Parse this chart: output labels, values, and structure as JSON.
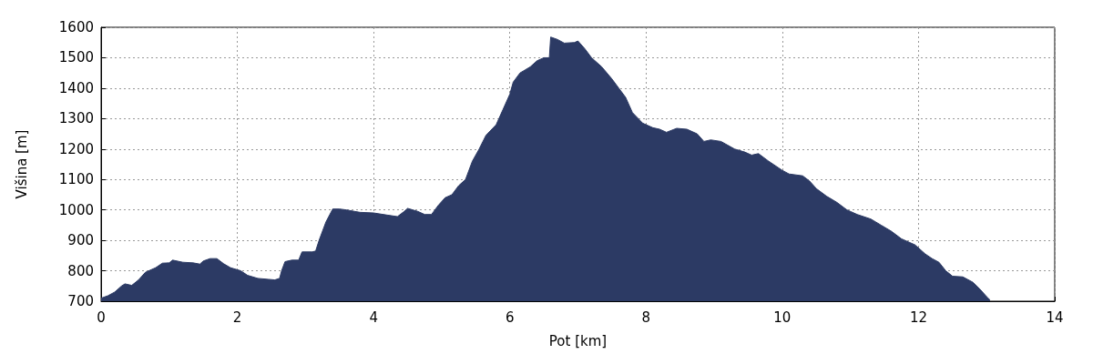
{
  "chart_data": {
    "type": "area",
    "xlabel": "Pot [km]",
    "ylabel": "Višina [m]",
    "xlim": [
      0,
      14
    ],
    "xticks": [
      0,
      2,
      4,
      6,
      8,
      10,
      12,
      14
    ],
    "ylim": [
      700,
      1600
    ],
    "yticks": [
      700,
      800,
      900,
      1000,
      1100,
      1200,
      1300,
      1400,
      1500,
      1600
    ],
    "grid": true,
    "series": [
      {
        "color": "#2c3a64",
        "x": [
          0,
          0.1,
          0.2,
          0.3,
          0.35,
          0.45,
          0.55,
          0.65,
          0.8,
          0.9,
          1.0,
          1.05,
          1.2,
          1.35,
          1.45,
          1.5,
          1.6,
          1.7,
          1.8,
          1.9,
          2.05,
          2.15,
          2.3,
          2.45,
          2.55,
          2.62,
          2.65,
          2.7,
          2.8,
          2.9,
          2.95,
          3.1,
          3.15,
          3.2,
          3.3,
          3.4,
          3.5,
          3.6,
          3.8,
          4.0,
          4.2,
          4.35,
          4.45,
          4.5,
          4.65,
          4.75,
          4.85,
          4.95,
          5.05,
          5.15,
          5.25,
          5.35,
          5.45,
          5.55,
          5.65,
          5.8,
          5.9,
          6.0,
          6.05,
          6.15,
          6.3,
          6.4,
          6.5,
          6.58,
          6.6,
          6.7,
          6.8,
          6.95,
          7.0,
          7.1,
          7.2,
          7.35,
          7.5,
          7.6,
          7.7,
          7.8,
          7.95,
          8.1,
          8.2,
          8.3,
          8.45,
          8.6,
          8.75,
          8.85,
          8.95,
          9.1,
          9.3,
          9.45,
          9.55,
          9.65,
          9.8,
          10.0,
          10.1,
          10.3,
          10.4,
          10.5,
          10.65,
          10.8,
          10.95,
          11.1,
          11.3,
          11.45,
          11.6,
          11.75,
          11.95,
          12.1,
          12.2,
          12.3,
          12.4,
          12.5,
          12.65,
          12.8,
          12.9,
          13.0,
          13.05
        ],
        "values": [
          710,
          718,
          730,
          750,
          757,
          752,
          770,
          795,
          810,
          825,
          826,
          835,
          828,
          826,
          822,
          832,
          840,
          840,
          823,
          810,
          800,
          785,
          775,
          772,
          770,
          775,
          800,
          830,
          835,
          835,
          862,
          862,
          865,
          900,
          960,
          1003,
          1003,
          1000,
          992,
          990,
          983,
          978,
          995,
          1005,
          995,
          985,
          985,
          1015,
          1040,
          1050,
          1080,
          1100,
          1160,
          1200,
          1245,
          1280,
          1330,
          1380,
          1420,
          1450,
          1470,
          1490,
          1500,
          1500,
          1568,
          1560,
          1548,
          1550,
          1555,
          1530,
          1500,
          1470,
          1430,
          1400,
          1370,
          1320,
          1285,
          1270,
          1265,
          1255,
          1268,
          1265,
          1250,
          1225,
          1230,
          1225,
          1200,
          1190,
          1180,
          1185,
          1160,
          1130,
          1118,
          1112,
          1095,
          1070,
          1045,
          1025,
          1000,
          985,
          970,
          950,
          930,
          905,
          885,
          855,
          840,
          828,
          800,
          782,
          780,
          762,
          740,
          715,
          704
        ]
      }
    ]
  }
}
